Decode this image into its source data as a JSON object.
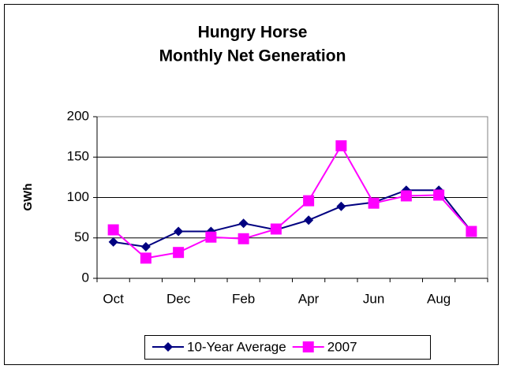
{
  "chart_data": {
    "type": "line",
    "title": "Hungry Horse",
    "subtitle": "Monthly Net Generation",
    "y_label": "GWh",
    "categories": [
      "Oct",
      null,
      "Dec",
      null,
      "Feb",
      null,
      "Apr",
      null,
      "Jun",
      null,
      "Aug",
      null
    ],
    "series": [
      {
        "name": "10-Year Average",
        "color": "#000080",
        "marker": "diamond",
        "values": [
          45,
          39,
          58,
          58,
          68,
          60,
          72,
          89,
          94,
          109,
          109,
          58
        ]
      },
      {
        "name": "2007",
        "color": "#ff00ff",
        "marker": "square",
        "values": [
          60,
          25,
          32,
          51,
          49,
          61,
          96,
          164,
          93,
          102,
          103,
          58
        ]
      }
    ],
    "ylim": [
      0,
      200
    ],
    "yticks": [
      0,
      50,
      100,
      150,
      200
    ],
    "grid": true,
    "legend": "bottom"
  }
}
